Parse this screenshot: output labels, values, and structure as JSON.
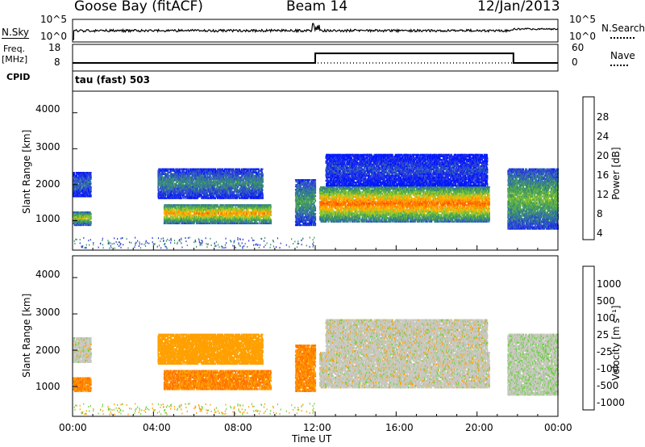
{
  "header": {
    "radar": "Goose Bay (fitACF)",
    "beam": "Beam 14",
    "date": "12/Jan/2013"
  },
  "top_panel": {
    "left_label": "N.Sky",
    "right_label": "N.Search",
    "left_ticks": [
      "10^5",
      "10^0"
    ],
    "right_ticks": [
      "10^5",
      "10^0"
    ]
  },
  "freq_panel": {
    "left_label_1": "Freq.",
    "left_label_2": "[MHz]",
    "right_label": "Nave",
    "left_ticks": [
      "18",
      "8"
    ],
    "right_ticks": [
      "60",
      "0"
    ],
    "cpid_label": "CPID",
    "cpid_value": "tau (fast) 503"
  },
  "power_panel": {
    "ylabel": "Slant Range [km]",
    "yticks": [
      "4000",
      "3000",
      "2000",
      "1000"
    ],
    "colorbar_label": "Power [dB]",
    "colorbar_ticks": [
      "28",
      "24",
      "20",
      "16",
      "12",
      "8",
      "4"
    ],
    "colors": [
      "#0018ff",
      "#2c3bd8",
      "#2f6fb0",
      "#3d8f6a",
      "#58b046",
      "#9ccc2c",
      "#ffb400",
      "#ff8a00",
      "#ff5a00",
      "#ff1e00"
    ]
  },
  "velocity_panel": {
    "ylabel": "Slant Range [km]",
    "yticks": [
      "4000",
      "3000",
      "2000",
      "1000"
    ],
    "colorbar_label": "Velocity [m s⁻¹]",
    "colorbar_ticks": [
      "1000",
      "500",
      "100",
      "25",
      "-25",
      "-100",
      "-500",
      "-1000"
    ],
    "colors": [
      "#2a2ad8",
      "#2e6fb0",
      "#3a9a55",
      "#6cd040",
      "#c8c8c0",
      "#ffa000",
      "#ff7000",
      "#ff3000"
    ]
  },
  "time_axis": {
    "label": "Time UT",
    "ticks": [
      "00:00",
      "04:00",
      "08:00",
      "12:00",
      "16:00",
      "20:00",
      "00:00"
    ]
  },
  "chart_data": {
    "type": "heatmap",
    "title": "Goose Bay (fitACF)  Beam 14  12/Jan/2013",
    "xlabel": "Time UT",
    "ylabel": "Slant Range [km]",
    "xlim_hours": [
      0,
      24
    ],
    "ylim_km": [
      180,
      4600
    ],
    "freq_series": {
      "name": "Freq. [MHz]",
      "segments": [
        {
          "from_hour": 0.0,
          "to_hour": 12.0,
          "value": 10.6
        },
        {
          "from_hour": 12.0,
          "to_hour": 21.8,
          "value": 15.0
        },
        {
          "from_hour": 21.8,
          "to_hour": 24.0,
          "value": 10.6
        }
      ]
    },
    "scatter_regions": [
      {
        "from_hour": 0.0,
        "to_hour": 0.9,
        "range_from": 1700,
        "range_to": 2400,
        "power_db": 8,
        "velocity": 0
      },
      {
        "from_hour": 0.0,
        "to_hour": 0.9,
        "range_from": 900,
        "range_to": 1300,
        "power_db": 16,
        "velocity": -100
      },
      {
        "from_hour": 4.5,
        "to_hour": 9.8,
        "range_from": 950,
        "range_to": 1500,
        "power_db": 20,
        "velocity": -100
      },
      {
        "from_hour": 4.2,
        "to_hour": 9.4,
        "range_from": 1650,
        "range_to": 2500,
        "power_db": 10,
        "velocity": -60
      },
      {
        "from_hour": 11.0,
        "to_hour": 12.0,
        "range_from": 900,
        "range_to": 2200,
        "power_db": 12,
        "velocity": -100
      },
      {
        "from_hour": 12.2,
        "to_hour": 20.6,
        "range_from": 1000,
        "range_to": 2000,
        "power_db": 22,
        "velocity": 0
      },
      {
        "from_hour": 12.5,
        "to_hour": 20.5,
        "range_from": 2000,
        "range_to": 2900,
        "power_db": 6,
        "velocity": 0
      },
      {
        "from_hour": 21.5,
        "to_hour": 24.0,
        "range_from": 800,
        "range_to": 2500,
        "power_db": 14,
        "velocity": 10
      }
    ]
  }
}
